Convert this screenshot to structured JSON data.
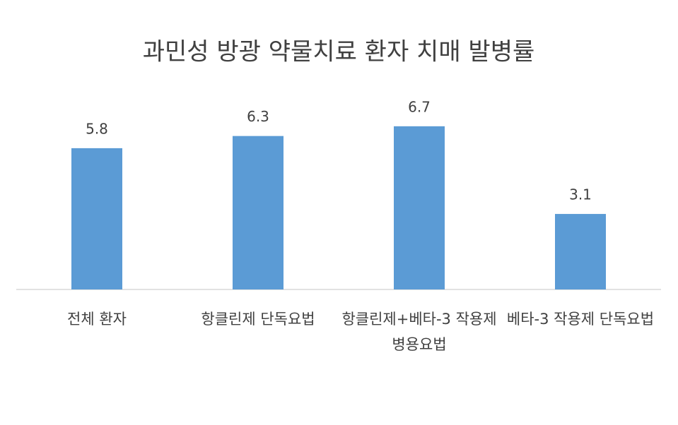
{
  "chart_data": {
    "type": "bar",
    "title": "과민성 방광 약물치료 환자 치매 발병률",
    "categories": [
      "전체 환자",
      "항클린제 단독요법",
      "항클린제+베타-3 작용제 병용요법",
      "베타-3 작용제 단독요법"
    ],
    "values": [
      5.8,
      6.3,
      6.7,
      3.1
    ],
    "color": "#5b9bd5"
  }
}
